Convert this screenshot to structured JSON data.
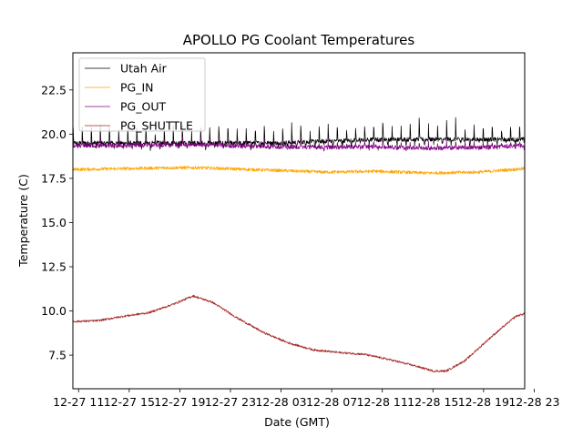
{
  "chart_data": {
    "type": "line",
    "title": "APOLLO PG Coolant Temperatures",
    "xlabel": "Date (GMT)",
    "ylabel": "Temperature (C)",
    "xlim_hours": [
      0,
      35.7
    ],
    "ylim": [
      5.6,
      24.6
    ],
    "x_ticks": [
      {
        "hour": 0.45,
        "label": "12-27 11"
      },
      {
        "hour": 4.45,
        "label": "12-27 15"
      },
      {
        "hour": 8.45,
        "label": "12-27 19"
      },
      {
        "hour": 12.45,
        "label": "12-27 23"
      },
      {
        "hour": 16.45,
        "label": "12-28 03"
      },
      {
        "hour": 20.45,
        "label": "12-28 07"
      },
      {
        "hour": 24.45,
        "label": "12-28 11"
      },
      {
        "hour": 28.45,
        "label": "12-28 15"
      },
      {
        "hour": 32.45,
        "label": "12-28 19"
      },
      {
        "hour": 36.45,
        "label": "12-28 23"
      }
    ],
    "y_ticks": [
      {
        "value": 7.5,
        "label": "7.5"
      },
      {
        "value": 10.0,
        "label": "10.0"
      },
      {
        "value": 12.5,
        "label": "12.5"
      },
      {
        "value": 15.0,
        "label": "15.0"
      },
      {
        "value": 17.5,
        "label": "17.5"
      },
      {
        "value": 20.0,
        "label": "20.0"
      },
      {
        "value": 22.5,
        "label": "22.5"
      }
    ],
    "legend_position": "top-left",
    "series": [
      {
        "name": "Utah Air",
        "color": "#000000",
        "x": [
          0,
          4,
          8,
          10,
          12,
          16,
          20,
          24,
          28,
          32,
          35.7
        ],
        "y": [
          19.5,
          19.5,
          19.5,
          19.5,
          19.5,
          19.5,
          19.6,
          19.7,
          19.7,
          19.7,
          19.7
        ]
      },
      {
        "name": "PG_IN",
        "color": "#ffa500",
        "x": [
          0,
          4,
          8,
          10,
          12,
          16,
          20,
          24,
          28,
          32,
          35.7
        ],
        "y": [
          18.0,
          18.05,
          18.1,
          18.1,
          18.05,
          17.95,
          17.85,
          17.9,
          17.8,
          17.85,
          18.05
        ]
      },
      {
        "name": "PG_OUT",
        "color": "#800080",
        "x": [
          0,
          4,
          8,
          10,
          12,
          16,
          20,
          24,
          28,
          32,
          35.7
        ],
        "y": [
          19.35,
          19.35,
          19.4,
          19.4,
          19.35,
          19.3,
          19.25,
          19.3,
          19.2,
          19.25,
          19.35
        ]
      },
      {
        "name": "PG_SHUTTLE",
        "color": "#a52a2a",
        "x": [
          0,
          2,
          4,
          6,
          8,
          9.5,
          11,
          13,
          15,
          17,
          19,
          21,
          23,
          25,
          27,
          28.5,
          29.5,
          31,
          33,
          35,
          35.7
        ],
        "y": [
          9.4,
          9.45,
          9.7,
          9.9,
          10.4,
          10.85,
          10.5,
          9.6,
          8.8,
          8.2,
          7.8,
          7.65,
          7.55,
          7.25,
          6.9,
          6.6,
          6.6,
          7.2,
          8.5,
          9.7,
          9.85
        ]
      }
    ]
  }
}
